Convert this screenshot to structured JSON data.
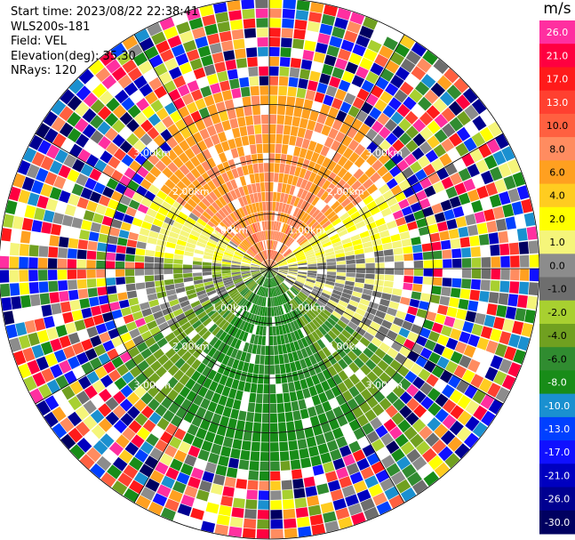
{
  "info": {
    "start_time": "Start time: 2023/08/22 22:38:41",
    "station": "WLS200s-181",
    "field": "Field: VEL",
    "elevation": "Elevation(deg): 35.30",
    "nrays": "NRays: 120"
  },
  "chart_data": {
    "type": "heatmap",
    "projection": "polar-ppi",
    "nrays": 120,
    "ring_labels": [
      "1.00km",
      "2.00km",
      "3.00km"
    ],
    "colorbar": {
      "unit": "m/s",
      "ticks": [
        "26.0",
        "21.0",
        "17.0",
        "13.0",
        "10.0",
        "8.0",
        "6.0",
        "4.0",
        "2.0",
        "1.0",
        "0.0",
        "-1.0",
        "-2.0",
        "-4.0",
        "-6.0",
        "-8.0",
        "-10.0",
        "-13.0",
        "-17.0",
        "-21.0",
        "-26.0",
        "-30.0"
      ],
      "colors": [
        "#ff2fa0",
        "#ff0040",
        "#ff1a1a",
        "#ff4030",
        "#ff6040",
        "#ff8c60",
        "#ffa020",
        "#ffcc20",
        "#ffff00",
        "#f5f57a",
        "#8c8c8c",
        "#6e6e6e",
        "#a8d030",
        "#70a020",
        "#308c30",
        "#188c18",
        "#1a90d0",
        "#0040ff",
        "#1010ff",
        "#0000c0",
        "#000090",
        "#000060"
      ]
    }
  }
}
